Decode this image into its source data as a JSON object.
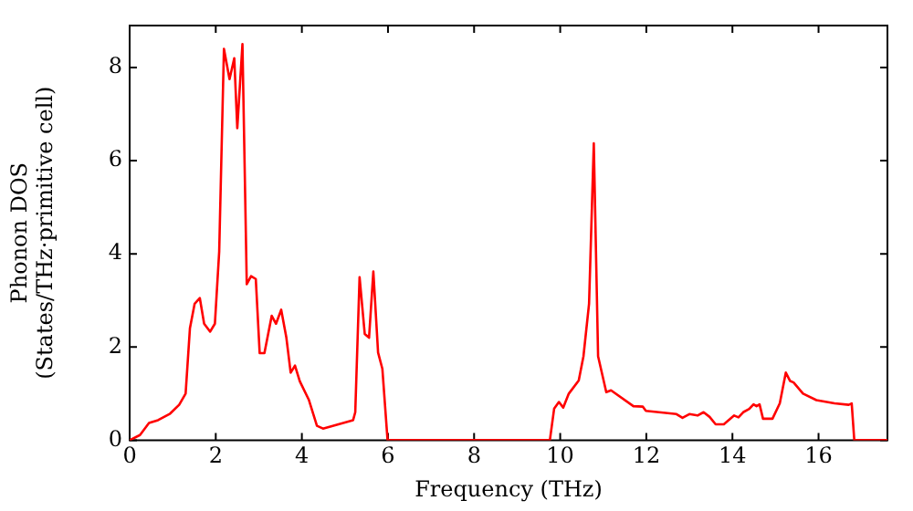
{
  "chart_data": {
    "type": "line",
    "xlabel": "Frequency (THz)",
    "ylabel": "Phonon DOS\n(States/THz·primitive cell)",
    "xlim": [
      0,
      17.6
    ],
    "ylim": [
      0,
      8.9
    ],
    "xticks": [
      0,
      2,
      4,
      6,
      8,
      10,
      12,
      14,
      16
    ],
    "yticks": [
      0,
      2,
      4,
      6,
      8
    ],
    "series": [
      {
        "color": "#ff0000",
        "x": [
          0,
          0.24,
          0.45,
          0.66,
          0.94,
          1.15,
          1.3,
          1.4,
          1.51,
          1.63,
          1.73,
          1.87,
          1.98,
          2.08,
          2.19,
          2.32,
          2.43,
          2.5,
          2.62,
          2.72,
          2.82,
          2.93,
          3.02,
          3.13,
          3.3,
          3.4,
          3.52,
          3.64,
          3.74,
          3.84,
          3.95,
          4.16,
          4.35,
          4.49,
          5.19,
          5.24,
          5.34,
          5.46,
          5.56,
          5.66,
          5.77,
          5.87,
          5.99,
          9.76,
          9.86,
          9.97,
          10.07,
          10.2,
          10.43,
          10.54,
          10.67,
          10.78,
          10.88,
          11.07,
          11.18,
          11.7,
          11.92,
          11.99,
          12.7,
          12.84,
          13.0,
          13.19,
          13.33,
          13.47,
          13.61,
          13.8,
          14.04,
          14.14,
          14.25,
          14.39,
          14.49,
          14.56,
          14.63,
          14.71,
          14.93,
          15.1,
          15.24,
          15.34,
          15.42,
          15.64,
          15.95,
          16.37,
          16.7,
          16.77,
          16.83,
          17.6
        ],
        "values": [
          0,
          0.11,
          0.37,
          0.43,
          0.57,
          0.76,
          1.0,
          2.4,
          2.93,
          3.05,
          2.5,
          2.33,
          2.5,
          4.05,
          8.4,
          7.75,
          8.2,
          6.7,
          8.5,
          3.35,
          3.52,
          3.46,
          1.87,
          1.87,
          2.67,
          2.5,
          2.8,
          2.2,
          1.45,
          1.6,
          1.27,
          0.87,
          0.31,
          0.25,
          0.43,
          0.6,
          3.5,
          2.28,
          2.2,
          3.62,
          1.88,
          1.53,
          0,
          0,
          0.68,
          0.82,
          0.7,
          1.0,
          1.28,
          1.8,
          2.93,
          6.37,
          1.8,
          1.03,
          1.07,
          0.73,
          0.72,
          0.63,
          0.56,
          0.48,
          0.56,
          0.53,
          0.6,
          0.5,
          0.34,
          0.34,
          0.53,
          0.49,
          0.6,
          0.67,
          0.77,
          0.73,
          0.77,
          0.46,
          0.46,
          0.79,
          1.45,
          1.27,
          1.24,
          1.0,
          0.86,
          0.79,
          0.76,
          0.79,
          0,
          0
        ]
      }
    ]
  }
}
